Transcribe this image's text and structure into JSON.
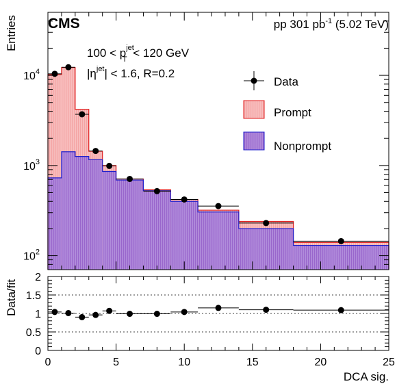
{
  "cms_label": "CMS",
  "lumi_label": {
    "prefix": "pp 301 pb",
    "sup": "-1",
    "suffix": " (5.02 TeV)"
  },
  "annotations": {
    "pt_prefix": "100 < p",
    "pt_sup": "jet",
    "pt_sub": "T",
    "pt_suffix": " < 120 GeV",
    "eta_prefix": "|η",
    "eta_sup": "jet",
    "eta_suffix": "| < 1.6, R=0.2"
  },
  "legend": {
    "data": "Data",
    "prompt": "Prompt",
    "nonprompt": "Nonprompt"
  },
  "colors": {
    "prompt_fill": "#f4a3a3",
    "prompt_line": "#e02020",
    "nonprompt_fill": "#9966cc",
    "nonprompt_line": "#2020cc"
  },
  "chart_data": [
    {
      "type": "bar",
      "scale": "log",
      "xlabel": "DCA sig.",
      "ylabel": "Entries",
      "xlim": [
        0,
        25
      ],
      "ylim": [
        70,
        50000
      ],
      "y_tick_labels": [
        {
          "base": "10",
          "exp": "2",
          "value": 100
        },
        {
          "base": "10",
          "exp": "3",
          "value": 1000
        },
        {
          "base": "10",
          "exp": "4",
          "value": 10000
        }
      ],
      "bin_edges": [
        0,
        1,
        2,
        3,
        4,
        5,
        7,
        9,
        11,
        14,
        18,
        25
      ],
      "series": [
        {
          "name": "Prompt",
          "values": [
            10200,
            12200,
            4200,
            1440,
            1000,
            710,
            540,
            420,
            320,
            240,
            140
          ]
        },
        {
          "name": "Nonprompt",
          "values": [
            730,
            1420,
            1260,
            1160,
            860,
            690,
            525,
            400,
            305,
            200,
            130
          ]
        }
      ],
      "data_points": {
        "name": "Data",
        "x": [
          0.5,
          1.5,
          2.5,
          3.5,
          4.5,
          6,
          8,
          10,
          12.5,
          16,
          21.5
        ],
        "xerr": [
          0.5,
          0.5,
          0.5,
          0.5,
          0.5,
          1,
          1,
          1,
          1.5,
          2,
          3.5
        ],
        "y": [
          10400,
          12300,
          3700,
          1450,
          990,
          710,
          520,
          420,
          355,
          230,
          145
        ]
      }
    },
    {
      "type": "scatter",
      "ylabel": "Data/fit",
      "xlabel": "DCA sig.",
      "xlim": [
        0,
        25
      ],
      "ylim": [
        0,
        2
      ],
      "x_ticks": [
        0,
        5,
        10,
        15,
        20,
        25
      ],
      "y_ticks": [
        0,
        0.5,
        1,
        1.5,
        2
      ],
      "y_tick_labels": [
        "0",
        "0.5",
        "1",
        "1.5",
        "2"
      ],
      "x_tick_labels": [
        "0",
        "5",
        "10",
        "15",
        "20",
        "25"
      ],
      "reference_lines": [
        0.5,
        1,
        1.5
      ],
      "x": [
        0.5,
        1.5,
        2.5,
        3.5,
        4.5,
        6,
        8,
        10,
        12.5,
        16,
        21.5
      ],
      "xerr": [
        0.5,
        0.5,
        0.5,
        0.5,
        0.5,
        1,
        1,
        1,
        1.5,
        2,
        3.5
      ],
      "y": [
        1.04,
        1.01,
        0.9,
        0.96,
        1.07,
        0.99,
        0.99,
        1.04,
        1.15,
        1.1,
        1.09
      ]
    }
  ]
}
